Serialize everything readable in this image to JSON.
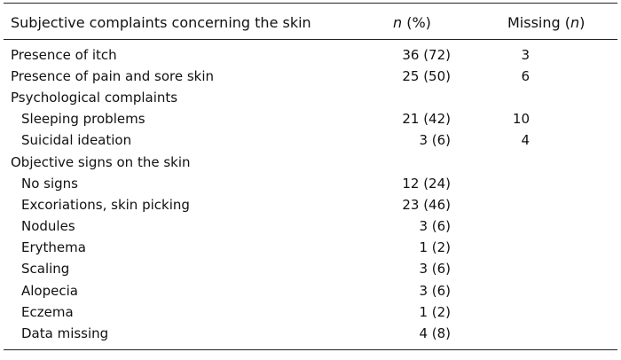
{
  "header": {
    "col1": "Subjective complaints concerning the skin",
    "col2_italic": "n",
    "col2_rest": " (%)",
    "col3_text": "Missing (",
    "col3_italic": "n",
    "col3_close": ")"
  },
  "rows": [
    {
      "label": "Presence of itch",
      "n": "36 (72)",
      "missing": "3"
    },
    {
      "label": "Presence of pain and sore skin",
      "n": "25 (50)",
      "missing": "6"
    },
    {
      "label": "Psychological complaints",
      "n": "",
      "missing": ""
    },
    {
      "label": "Sleeping problems",
      "n": "21 (42)",
      "missing": "10"
    },
    {
      "label": "Suicidal ideation",
      "n": "3 (6)",
      "missing": "4"
    },
    {
      "label": "Objective signs on the skin",
      "n": "",
      "missing": ""
    },
    {
      "label": "No signs",
      "n": "12 (24)",
      "missing": ""
    },
    {
      "label": "Excoriations, skin picking",
      "n": "23 (46)",
      "missing": ""
    },
    {
      "label": "Nodules",
      "n": "3 (6)",
      "missing": ""
    },
    {
      "label": "Erythema",
      "n": "1 (2)",
      "missing": ""
    },
    {
      "label": "Scaling",
      "n": "3 (6)",
      "missing": ""
    },
    {
      "label": "Alopecia",
      "n": "3 (6)",
      "missing": ""
    },
    {
      "label": "Eczema",
      "n": "1 (2)",
      "missing": ""
    },
    {
      "label": "Data missing",
      "n": "4 (8)",
      "missing": ""
    }
  ]
}
